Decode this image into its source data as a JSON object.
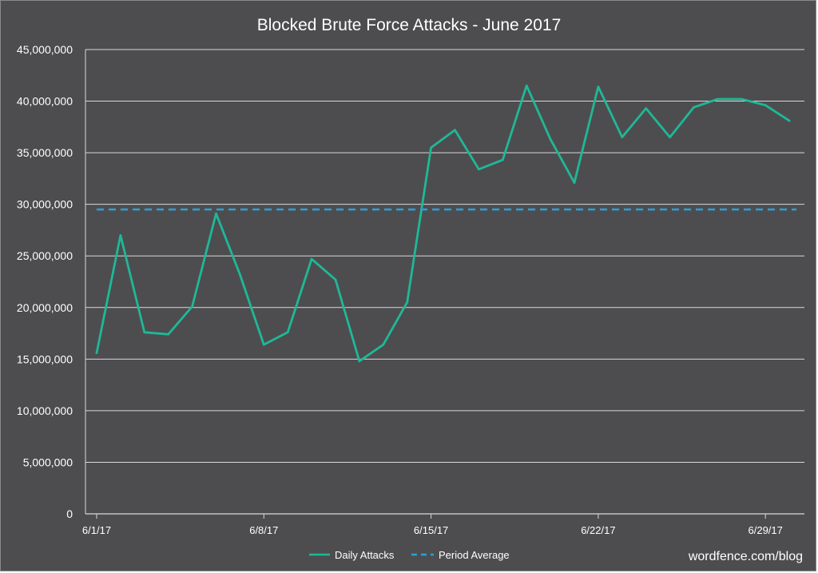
{
  "chart_data": {
    "type": "line",
    "title": "Blocked Brute Force Attacks - June 2017",
    "xlabel": "",
    "ylabel": "",
    "x": [
      "6/1/17",
      "6/2/17",
      "6/3/17",
      "6/4/17",
      "6/5/17",
      "6/6/17",
      "6/7/17",
      "6/8/17",
      "6/9/17",
      "6/10/17",
      "6/11/17",
      "6/12/17",
      "6/13/17",
      "6/14/17",
      "6/15/17",
      "6/16/17",
      "6/17/17",
      "6/18/17",
      "6/19/17",
      "6/20/17",
      "6/21/17",
      "6/22/17",
      "6/23/17",
      "6/24/17",
      "6/25/17",
      "6/26/17",
      "6/27/17",
      "6/28/17",
      "6/29/17",
      "6/30/17"
    ],
    "x_tick_labels": [
      "6/1/17",
      "6/8/17",
      "6/15/17",
      "6/22/17",
      "6/29/17"
    ],
    "ylim": [
      0,
      45000000
    ],
    "y_tick_values": [
      0,
      5000000,
      10000000,
      15000000,
      20000000,
      25000000,
      30000000,
      35000000,
      40000000,
      45000000
    ],
    "y_tick_labels": [
      "0",
      "5,000,000",
      "10,000,000",
      "15,000,000",
      "20,000,000",
      "25,000,000",
      "30,000,000",
      "35,000,000",
      "40,000,000",
      "45,000,000"
    ],
    "grid": true,
    "legend_position": "bottom-center",
    "series": [
      {
        "name": "Daily Attacks",
        "style": "solid",
        "color": "#1fb897",
        "values": [
          15600000,
          27000000,
          17600000,
          17400000,
          20100000,
          29100000,
          23200000,
          16400000,
          17600000,
          24700000,
          22700000,
          14800000,
          16400000,
          20500000,
          35500000,
          37200000,
          33400000,
          34300000,
          41500000,
          36300000,
          32100000,
          41400000,
          36500000,
          39300000,
          36500000,
          39400000,
          40200000,
          40200000,
          39600000,
          38100000
        ]
      },
      {
        "name": "Period Average",
        "style": "dashed",
        "color": "#2e9fd9",
        "values": [
          29500000,
          29500000,
          29500000,
          29500000,
          29500000,
          29500000,
          29500000,
          29500000,
          29500000,
          29500000,
          29500000,
          29500000,
          29500000,
          29500000,
          29500000,
          29500000,
          29500000,
          29500000,
          29500000,
          29500000,
          29500000,
          29500000,
          29500000,
          29500000,
          29500000,
          29500000,
          29500000,
          29500000,
          29500000,
          29500000
        ]
      }
    ],
    "credit": "wordfence.com/blog",
    "colors": {
      "background": "#4d4d4f",
      "grid": "#d9d9d9",
      "text": "#ffffff"
    }
  }
}
